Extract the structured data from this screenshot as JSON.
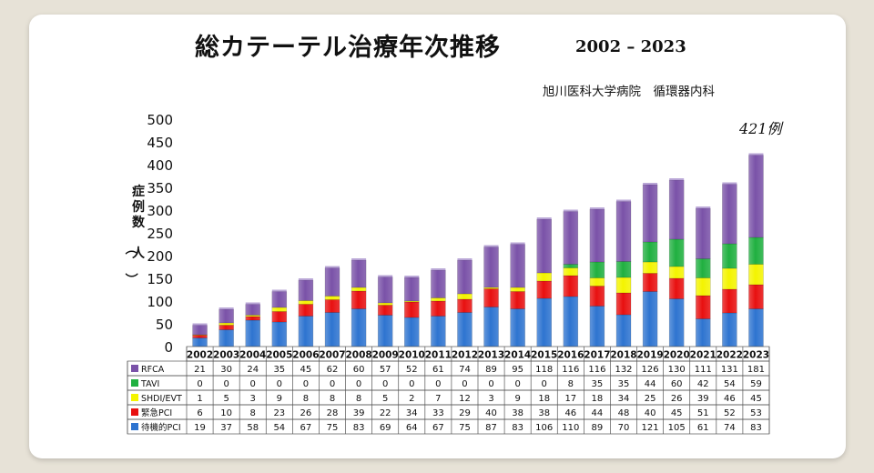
{
  "header": {
    "title": "総カテーテル治療年次推移",
    "years": "2002 – 2023",
    "subtitle": "旭川医科大学病院　循環器内科"
  },
  "chart_data": {
    "type": "bar",
    "stacked": true,
    "ylabel": "症例数（人）",
    "ylim": [
      0,
      500
    ],
    "yticks": [
      0,
      50,
      100,
      150,
      200,
      250,
      300,
      350,
      400,
      450,
      500
    ],
    "annotation": "421例",
    "categories": [
      "2002",
      "2003",
      "2004",
      "2005",
      "2006",
      "2007",
      "2008",
      "2009",
      "2010",
      "2011",
      "2012",
      "2013",
      "2014",
      "2015",
      "2016",
      "2017",
      "2018",
      "2019",
      "2020",
      "2021",
      "2022",
      "2023"
    ],
    "series": [
      {
        "name": "待機的PCI",
        "color": "#2e74d0",
        "values": [
          19,
          37,
          58,
          54,
          67,
          75,
          83,
          69,
          64,
          67,
          75,
          87,
          83,
          106,
          110,
          89,
          70,
          121,
          105,
          61,
          74,
          83
        ]
      },
      {
        "name": "緊急PCI",
        "color": "#e81010",
        "values": [
          6,
          10,
          8,
          23,
          26,
          28,
          39,
          22,
          34,
          33,
          29,
          40,
          38,
          38,
          46,
          44,
          48,
          40,
          45,
          51,
          52,
          53
        ]
      },
      {
        "name": "SHDI/EVT",
        "color": "#f4f400",
        "values": [
          1,
          5,
          3,
          9,
          8,
          8,
          8,
          5,
          2,
          7,
          12,
          3,
          9,
          18,
          17,
          18,
          34,
          25,
          26,
          39,
          46,
          45
        ]
      },
      {
        "name": "TAVI",
        "color": "#20b040",
        "values": [
          0,
          0,
          0,
          0,
          0,
          0,
          0,
          0,
          0,
          0,
          0,
          0,
          0,
          0,
          8,
          35,
          35,
          44,
          60,
          42,
          54,
          59
        ]
      },
      {
        "name": "RFCA",
        "color": "#7a52a8",
        "values": [
          21,
          30,
          24,
          35,
          45,
          62,
          60,
          57,
          52,
          61,
          74,
          89,
          95,
          118,
          116,
          116,
          132,
          126,
          130,
          111,
          131,
          181
        ]
      }
    ]
  }
}
